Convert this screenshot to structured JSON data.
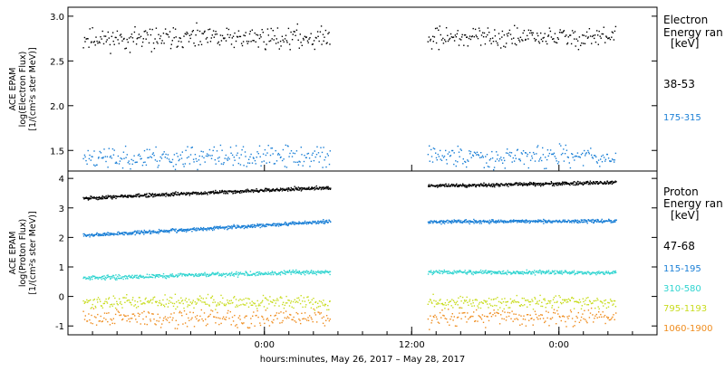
{
  "chart_data": [
    {
      "type": "scatter",
      "panel": "electron",
      "ylabel_lines": [
        "ACE EPAM",
        "log(Electron Flux)",
        "[1/(cm²s ster MeV)]"
      ],
      "ylim": [
        1.27,
        3.1
      ],
      "yticks": [
        1.5,
        2.0,
        2.5,
        3.0
      ],
      "ytick_labels": [
        "1.5",
        "2.0",
        "2.5",
        "3.0"
      ],
      "legend_title_lines": [
        "Electron",
        "Energy ran",
        "[keV]"
      ],
      "x_segments": [
        [
          0.05,
          0.89
        ],
        [
          1.22,
          1.86
        ]
      ],
      "series": [
        {
          "name": "38-53",
          "color": "#000000",
          "base": 2.77,
          "start": 2.75,
          "end": 2.77,
          "noise": 0.12,
          "density": 1.0,
          "seed": 11
        },
        {
          "name": "175-315",
          "color": "#1a7fd6",
          "base": 1.44,
          "start": 1.42,
          "end": 1.44,
          "noise": 0.12,
          "density": 1.0,
          "seed": 23
        }
      ]
    },
    {
      "type": "scatter",
      "panel": "proton",
      "ylabel_lines": [
        "ACE EPAM",
        "log(Proton Flux)",
        "[1/(cm²s ster MeV)]"
      ],
      "ylim": [
        -1.3,
        4.25
      ],
      "yticks": [
        -1,
        0,
        1,
        2,
        3,
        4
      ],
      "ytick_labels": [
        "-1",
        "0",
        "1",
        "2",
        "3",
        "4"
      ],
      "legend_title_lines": [
        "Proton",
        "Energy ran",
        "[keV]"
      ],
      "x_segments": [
        [
          0.05,
          0.89
        ],
        [
          1.22,
          1.86
        ]
      ],
      "series": [
        {
          "name": "47-68",
          "color": "#000000",
          "base": 3.7,
          "start": 3.35,
          "end": 3.88,
          "noise": 0.06,
          "density": 2.0,
          "seed": 5
        },
        {
          "name": "115-195",
          "color": "#1a7fd6",
          "base": 2.55,
          "start": 2.08,
          "end": 2.57,
          "noise": 0.06,
          "density": 2.0,
          "seed": 7
        },
        {
          "name": "310-580",
          "color": "#2fd4d0",
          "base": 0.85,
          "start": 0.65,
          "end": 0.83,
          "noise": 0.07,
          "density": 1.6,
          "seed": 13
        },
        {
          "name": "795-1193",
          "color": "#c8dc1e",
          "base": -0.2,
          "start": -0.15,
          "end": -0.18,
          "noise": 0.22,
          "density": 1.1,
          "seed": 17
        },
        {
          "name": "1060-1900",
          "color": "#ef8c1d",
          "base": -0.7,
          "start": -0.72,
          "end": -0.68,
          "noise": 0.28,
          "density": 0.9,
          "seed": 29
        }
      ]
    }
  ],
  "x_axis": {
    "range_days": [
      0,
      2
    ],
    "major_ticks": [
      0.667,
      1.167,
      1.667
    ],
    "major_labels": [
      "0:00",
      "12:00",
      "0:00"
    ],
    "minor_step_days": 0.08333,
    "title": "hours:minutes, May 26, 2017 – May 28, 2017"
  }
}
